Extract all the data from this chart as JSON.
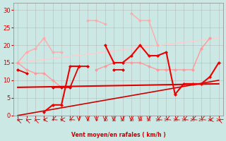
{
  "bg_color": "#cce8e4",
  "grid_color": "#aaaaaa",
  "xlabel": "Vent moyen/en rafales ( km/h )",
  "xlabel_color": "#cc0000",
  "xlim": [
    -0.5,
    23.5
  ],
  "ylim": [
    0,
    32
  ],
  "plot_ylim": [
    0,
    32
  ],
  "yticks": [
    0,
    5,
    10,
    15,
    20,
    25,
    30
  ],
  "xticks": [
    0,
    1,
    2,
    3,
    4,
    5,
    6,
    7,
    8,
    9,
    10,
    11,
    12,
    13,
    14,
    15,
    16,
    17,
    18,
    19,
    20,
    21,
    22,
    23
  ],
  "lines": [
    {
      "x": [
        0,
        23
      ],
      "y": [
        15.0,
        22.0
      ],
      "color": "#ffcccc",
      "lw": 1.0,
      "marker": null,
      "zorder": 1
    },
    {
      "x": [
        0,
        23
      ],
      "y": [
        0.0,
        10.0
      ],
      "color": "#cc0000",
      "lw": 1.2,
      "marker": null,
      "zorder": 2
    },
    {
      "x": [
        0,
        1,
        2,
        3,
        4,
        5,
        6,
        7,
        8,
        9,
        10,
        11,
        12,
        13,
        14,
        15,
        16,
        17,
        18,
        19,
        20,
        21,
        22,
        23
      ],
      "y": [
        15,
        18,
        19,
        22,
        18,
        18,
        null,
        null,
        27,
        27,
        26,
        null,
        null,
        29,
        27,
        27,
        20,
        null,
        null,
        null,
        null,
        null,
        22,
        null
      ],
      "color": "#ffaaaa",
      "lw": 1.0,
      "marker": "D",
      "ms": 2.5,
      "zorder": 3
    },
    {
      "x": [
        0,
        1,
        2,
        3,
        4,
        5,
        6,
        7,
        8,
        9,
        10,
        11,
        12,
        13,
        14,
        15,
        16,
        17,
        18,
        19,
        20,
        21,
        22,
        23
      ],
      "y": [
        15,
        13,
        12,
        12,
        10,
        8,
        8,
        null,
        null,
        13,
        14,
        15,
        15,
        15,
        15,
        14,
        13,
        13,
        13,
        13,
        13,
        19,
        22,
        null
      ],
      "color": "#ff9999",
      "lw": 1.0,
      "marker": "D",
      "ms": 2.5,
      "zorder": 4
    },
    {
      "x": [
        0,
        23
      ],
      "y": [
        8.0,
        9.0
      ],
      "color": "#dd0000",
      "lw": 1.5,
      "marker": null,
      "zorder": 5
    },
    {
      "x": [
        0,
        1,
        2,
        3,
        4,
        5,
        6,
        7,
        8,
        9,
        10,
        11,
        12,
        13,
        14,
        15,
        16,
        17,
        18,
        19,
        20,
        21,
        22,
        23
      ],
      "y": [
        13,
        12,
        null,
        null,
        8,
        8,
        8,
        14,
        14,
        null,
        null,
        13,
        13,
        null,
        null,
        null,
        null,
        null,
        null,
        null,
        null,
        null,
        null,
        null
      ],
      "color": "#dd0000",
      "lw": 1.3,
      "marker": "D",
      "ms": 2.5,
      "zorder": 6
    },
    {
      "x": [
        3,
        4,
        5,
        6,
        7,
        8,
        9,
        10,
        11,
        12,
        13,
        14,
        15,
        16,
        17,
        18,
        19,
        20,
        21,
        22,
        23
      ],
      "y": [
        1,
        3,
        3,
        14,
        14,
        null,
        null,
        20,
        15,
        15,
        17,
        20,
        17,
        17,
        18,
        6,
        9,
        9,
        9,
        11,
        15
      ],
      "color": "#ee0000",
      "lw": 1.5,
      "marker": "D",
      "ms": 2.5,
      "zorder": 7
    }
  ],
  "wind_dirs_deg": [
    225,
    225,
    225,
    270,
    315,
    270,
    315,
    0,
    0,
    0,
    0,
    0,
    0,
    0,
    0,
    0,
    315,
    315,
    315,
    315,
    315,
    315,
    270,
    225
  ]
}
